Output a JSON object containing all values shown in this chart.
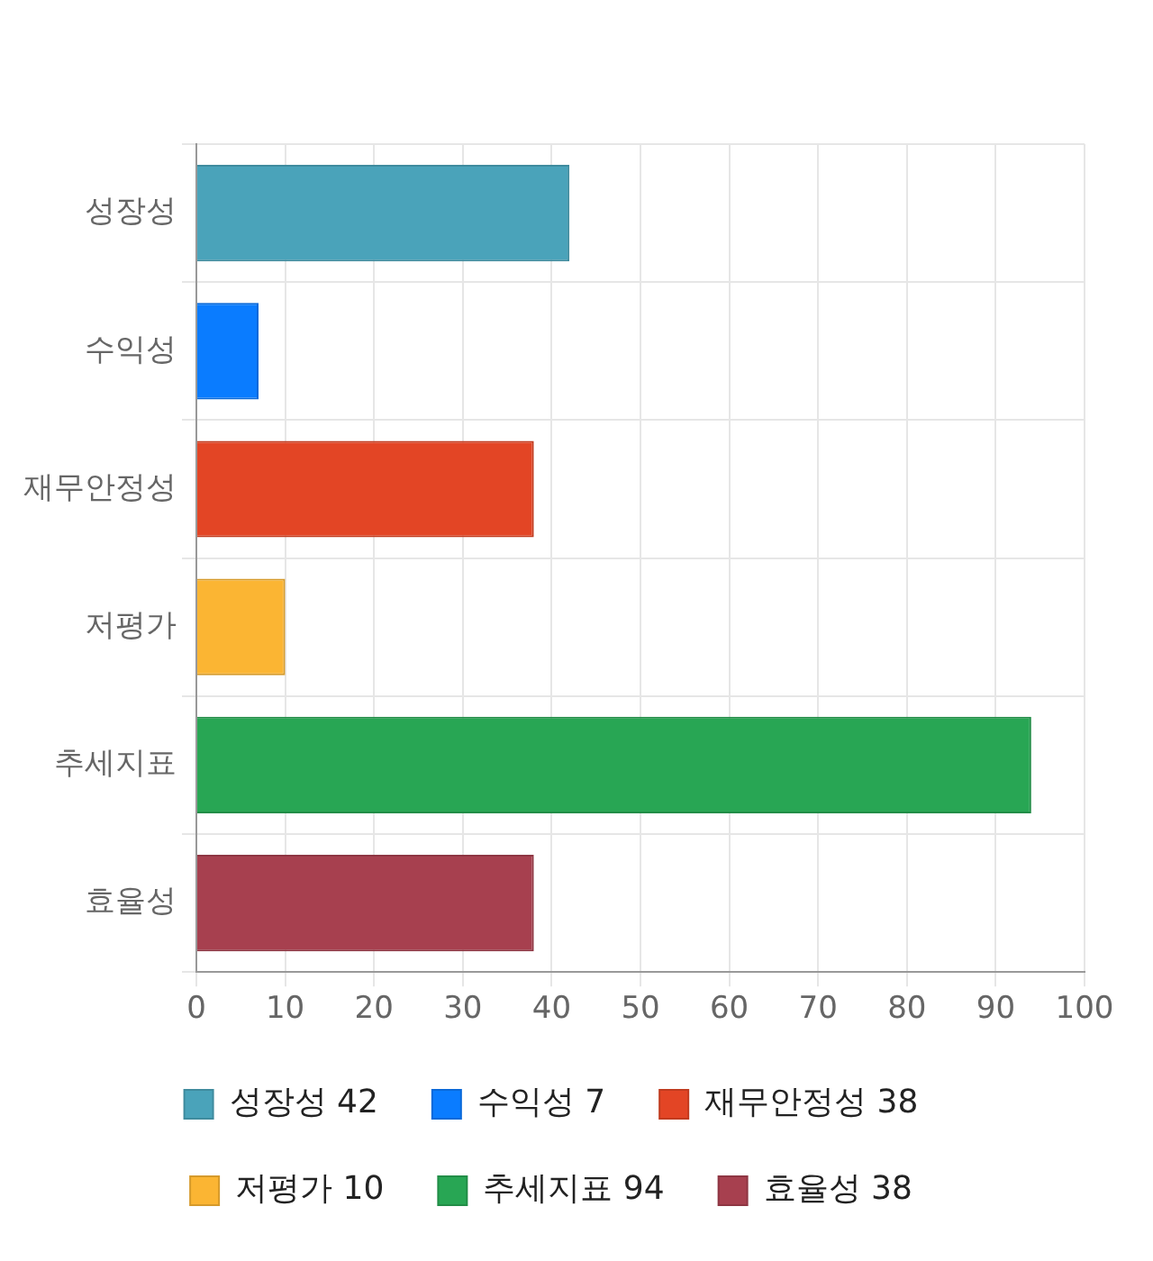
{
  "chart_data": {
    "type": "bar",
    "orientation": "horizontal",
    "categories": [
      "성장성",
      "수익성",
      "재무안정성",
      "저평가",
      "추세지표",
      "효율성"
    ],
    "series": [
      {
        "name": "성장성 42",
        "color": "#4aa3ba",
        "values": [
          42,
          null,
          null,
          null,
          null,
          null
        ]
      },
      {
        "name": "수익성 7",
        "color": "#0a7cff",
        "values": [
          null,
          7,
          null,
          null,
          null,
          null
        ]
      },
      {
        "name": "재무안정성 38",
        "color": "#e34525",
        "values": [
          null,
          null,
          38,
          null,
          null,
          null
        ]
      },
      {
        "name": "저평가 10",
        "color": "#fbb533",
        "values": [
          null,
          null,
          null,
          10,
          null,
          null
        ]
      },
      {
        "name": "추세지표 94",
        "color": "#28a654",
        "values": [
          null,
          null,
          null,
          null,
          94,
          null
        ]
      },
      {
        "name": "효율성 38",
        "color": "#a7404f",
        "values": [
          null,
          null,
          null,
          null,
          null,
          38
        ]
      }
    ],
    "xlim": [
      0,
      100
    ],
    "xticks": [
      0,
      10,
      20,
      30,
      40,
      50,
      60,
      70,
      80,
      90,
      100
    ],
    "grid": true,
    "legend": "bottom"
  }
}
